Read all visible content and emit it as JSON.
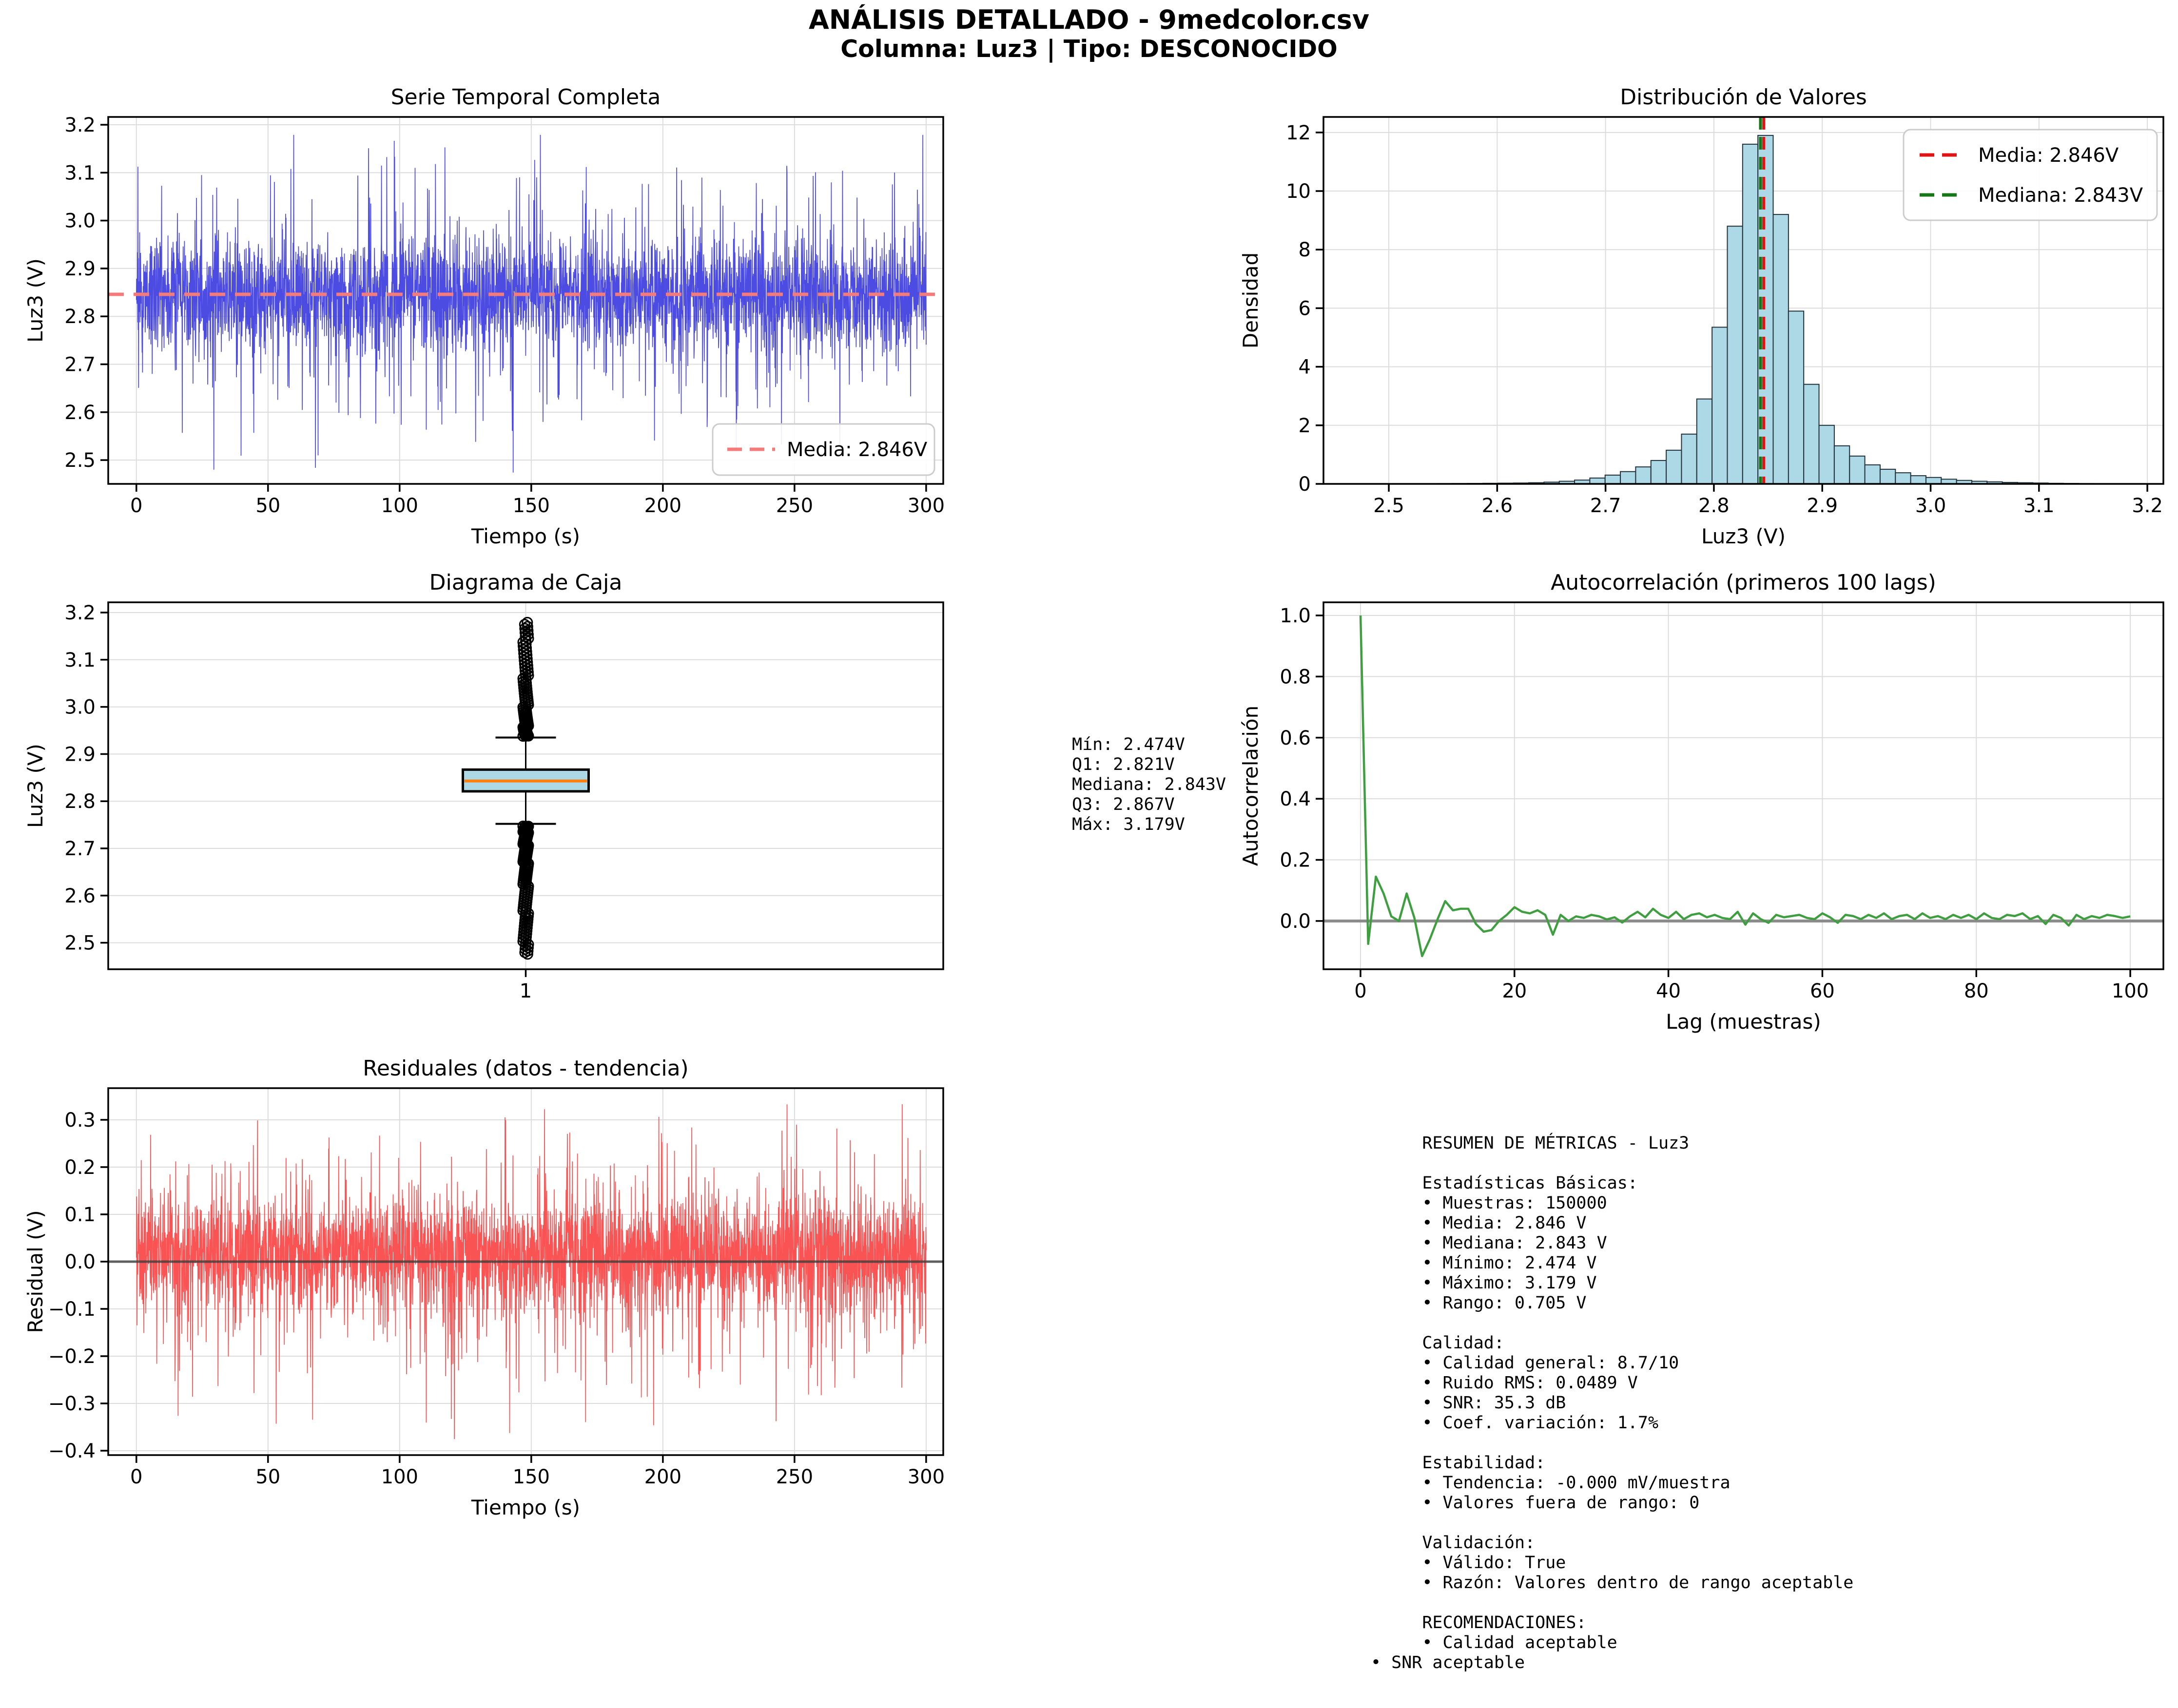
{
  "header": {
    "title": "ANÁLISIS DETALLADO - 9medcolor.csv",
    "subtitle": "Columna: Luz3 | Tipo: DESCONOCIDO"
  },
  "colors": {
    "background": "#ffffff",
    "grid": "#dcdcdc",
    "spine": "#000000",
    "series_blue": "#3d3de0",
    "mean_dash_soft": "#f57a7a",
    "hist_fill": "#add8e6",
    "hist_edge": "#23313a",
    "media_red": "#e01414",
    "mediana_green": "#157815",
    "box_fill": "#add8e6",
    "box_median_orange": "#ff7f0e",
    "acf_green": "#3f9e3f",
    "acf_zero_gray": "#8c8c8c",
    "residual_red": "#f94444",
    "residual_zero": "#3f3f3f"
  },
  "chart_data": [
    {
      "id": "serie_temporal",
      "type": "line",
      "title": "Serie Temporal Completa",
      "xlabel": "Tiempo (s)",
      "ylabel": "Luz3 (V)",
      "xlim": [
        -10.7,
        306.5
      ],
      "ylim": [
        2.4503,
        3.2163
      ],
      "x_ticks": {
        "values": [
          0,
          50,
          100,
          150,
          200,
          250,
          300
        ],
        "labels": [
          "0",
          "50",
          "100",
          "150",
          "200",
          "250",
          "300"
        ]
      },
      "y_ticks": {
        "values": [
          2.5,
          2.6,
          2.7,
          2.8,
          2.9,
          3.0,
          3.1,
          3.2
        ],
        "labels": [
          "2.5",
          "2.6",
          "2.7",
          "2.8",
          "2.9",
          "3.0",
          "3.1",
          "3.2"
        ]
      },
      "grid": true,
      "signal": {
        "kind": "noise",
        "n": 3600,
        "x_start": 0,
        "x_end": 300,
        "mean": 2.846,
        "bulk_spread": 0.105,
        "p_down": 0.1,
        "down_base": 0.04,
        "down_var": 0.33,
        "p_up": 0.08,
        "up_base": 0.03,
        "up_var": 0.3,
        "clip_min": 2.474,
        "clip_max": 3.179,
        "seed": 20240
      },
      "mean_line": {
        "value": 2.846
      },
      "legend": {
        "position": "lower right",
        "entries": [
          {
            "label": "Media: 2.846V",
            "color": "#f57a7a",
            "dashed": true
          }
        ]
      }
    },
    {
      "id": "distribucion",
      "type": "bar",
      "title": "Distribución de Valores",
      "xlabel": "Luz3 (V)",
      "ylabel": "Densidad",
      "xlim": [
        2.4397,
        3.2148
      ],
      "ylim": [
        0,
        12.53
      ],
      "x_ticks": {
        "values": [
          2.5,
          2.6,
          2.7,
          2.8,
          2.9,
          3.0,
          3.1,
          3.2
        ],
        "labels": [
          "2.5",
          "2.6",
          "2.7",
          "2.8",
          "2.9",
          "3.0",
          "3.1",
          "3.2"
        ]
      },
      "y_ticks": {
        "values": [
          0,
          2,
          4,
          6,
          8,
          10,
          12
        ],
        "labels": [
          "0",
          "2",
          "4",
          "6",
          "8",
          "10",
          "12"
        ]
      },
      "grid": true,
      "bin_start": 2.474,
      "bin_width": 0.0141,
      "densities": [
        0.005,
        0.005,
        0.005,
        0.007,
        0.008,
        0.01,
        0.012,
        0.015,
        0.02,
        0.025,
        0.03,
        0.04,
        0.06,
        0.09,
        0.13,
        0.2,
        0.3,
        0.42,
        0.58,
        0.8,
        1.15,
        1.7,
        2.9,
        5.35,
        8.8,
        11.6,
        11.9,
        9.2,
        5.9,
        3.4,
        2.0,
        1.3,
        0.95,
        0.65,
        0.5,
        0.38,
        0.28,
        0.22,
        0.16,
        0.12,
        0.09,
        0.07,
        0.05,
        0.04,
        0.03,
        0.02,
        0.015,
        0.01,
        0.008,
        0.005
      ],
      "media": {
        "value": 2.846,
        "label": "Media: 2.846V",
        "color": "#e01414"
      },
      "mediana": {
        "value": 2.843,
        "label": "Mediana: 2.843V",
        "color": "#157815"
      },
      "legend": {
        "position": "upper right"
      }
    },
    {
      "id": "caja",
      "type": "box",
      "title": "Diagrama de Caja",
      "xlabel": "",
      "ylabel": "Luz3 (V)",
      "xlim": [
        0.5,
        1.5
      ],
      "ylim": [
        2.4438,
        3.2217
      ],
      "x_ticks": {
        "values": [
          1
        ],
        "labels": [
          "1"
        ]
      },
      "y_ticks": {
        "values": [
          2.5,
          2.6,
          2.7,
          2.8,
          2.9,
          3.0,
          3.1,
          3.2
        ],
        "labels": [
          "2.5",
          "2.6",
          "2.7",
          "2.8",
          "2.9",
          "3.0",
          "3.1",
          "3.2"
        ]
      },
      "grid": true,
      "stats": {
        "min": 2.474,
        "q1": 2.821,
        "median": 2.843,
        "q3": 2.867,
        "whisker_low": 2.752,
        "whisker_high": 2.935,
        "max": 3.179
      },
      "outliers": {
        "upper_from": 2.938,
        "upper_to": 3.179,
        "upper_n": 95,
        "lower_from": 2.747,
        "lower_to": 2.476,
        "lower_n": 135
      }
    },
    {
      "id": "autocorrelacion",
      "type": "line",
      "title": "Autocorrelación (primeros 100 lags)",
      "xlabel": "Lag (muestras)",
      "ylabel": "Autocorrelación",
      "xlim": [
        -4.81,
        104.3
      ],
      "ylim": [
        -0.158,
        1.043
      ],
      "x_ticks": {
        "values": [
          0,
          20,
          40,
          60,
          80,
          100
        ],
        "labels": [
          "0",
          "20",
          "40",
          "60",
          "80",
          "100"
        ]
      },
      "y_ticks": {
        "values": [
          0.0,
          0.2,
          0.4,
          0.6,
          0.8,
          1.0
        ],
        "labels": [
          "0.0",
          "0.2",
          "0.4",
          "0.6",
          "0.8",
          "1.0"
        ]
      },
      "grid": true,
      "zero_line": 0,
      "values": [
        1.0,
        -0.075,
        0.145,
        0.09,
        0.015,
        0.0,
        0.09,
        0.01,
        -0.115,
        -0.06,
        0.005,
        0.065,
        0.035,
        0.04,
        0.04,
        -0.01,
        -0.035,
        -0.03,
        0.0,
        0.02,
        0.045,
        0.03,
        0.025,
        0.035,
        0.02,
        -0.045,
        0.02,
        0.0,
        0.015,
        0.01,
        0.02,
        0.015,
        0.005,
        0.012,
        -0.005,
        0.015,
        0.03,
        0.012,
        0.04,
        0.02,
        0.01,
        0.03,
        0.006,
        0.02,
        0.025,
        0.012,
        0.02,
        0.01,
        0.006,
        0.03,
        -0.012,
        0.025,
        0.006,
        -0.006,
        0.02,
        0.012,
        0.016,
        0.02,
        0.01,
        0.006,
        0.025,
        0.012,
        -0.006,
        0.02,
        0.016,
        0.006,
        0.02,
        0.01,
        0.025,
        0.006,
        0.016,
        0.02,
        0.006,
        0.025,
        0.01,
        0.016,
        0.006,
        0.02,
        0.01,
        0.02,
        0.006,
        0.025,
        0.01,
        0.006,
        0.02,
        0.016,
        0.025,
        0.006,
        0.016,
        -0.01,
        0.02,
        0.01,
        -0.015,
        0.02,
        0.006,
        0.016,
        0.01,
        0.02,
        0.016,
        0.01,
        0.015
      ]
    },
    {
      "id": "residuales",
      "type": "line",
      "title": "Residuales (datos - tendencia)",
      "xlabel": "Tiempo (s)",
      "ylabel": "Residual (V)",
      "xlim": [
        -10.7,
        306.5
      ],
      "ylim": [
        -0.4093,
        0.367
      ],
      "x_ticks": {
        "values": [
          0,
          50,
          100,
          150,
          200,
          250,
          300
        ],
        "labels": [
          "0",
          "50",
          "100",
          "150",
          "200",
          "250",
          "300"
        ]
      },
      "y_ticks": {
        "values": [
          -0.4,
          -0.3,
          -0.2,
          -0.1,
          0.0,
          0.1,
          0.2,
          0.3
        ],
        "labels": [
          "−0.4",
          "−0.3",
          "−0.2",
          "−0.1",
          "0.0",
          "0.1",
          "0.2",
          "0.3"
        ]
      },
      "grid": true,
      "zero_line": 0,
      "signal": {
        "kind": "noise",
        "n": 3600,
        "x_start": 0,
        "x_end": 300,
        "mean": 0.018,
        "bulk_spread": 0.108,
        "p_down": 0.1,
        "down_base": 0.05,
        "down_var": 0.33,
        "p_up": 0.08,
        "up_base": 0.04,
        "up_var": 0.27,
        "clip_min": -0.381,
        "clip_max": 0.333,
        "seed": 9091
      }
    }
  ],
  "stats_box": {
    "lines": [
      "Mín: 2.474V",
      "Q1: 2.821V",
      "Mediana: 2.843V",
      "Q3: 2.867V",
      "Máx: 3.179V"
    ]
  },
  "metrics": {
    "lines": [
      "     RESUMEN DE MÉTRICAS - Luz3",
      "",
      "     Estadísticas Básicas:",
      "     • Muestras: 150000",
      "     • Media: 2.846 V",
      "     • Mediana: 2.843 V",
      "     • Mínimo: 2.474 V",
      "     • Máximo: 3.179 V",
      "     • Rango: 0.705 V",
      "",
      "     Calidad:",
      "     • Calidad general: 8.7/10",
      "     • Ruido RMS: 0.0489 V",
      "     • SNR: 35.3 dB",
      "     • Coef. variación: 1.7%",
      "",
      "     Estabilidad:",
      "     • Tendencia: -0.000 mV/muestra",
      "     • Valores fuera de rango: 0",
      "",
      "     Validación:",
      "     • Válido: True",
      "     • Razón: Valores dentro de rango aceptable",
      "",
      "     RECOMENDACIONES:",
      "     • Calidad aceptable",
      "• SNR aceptable"
    ]
  }
}
